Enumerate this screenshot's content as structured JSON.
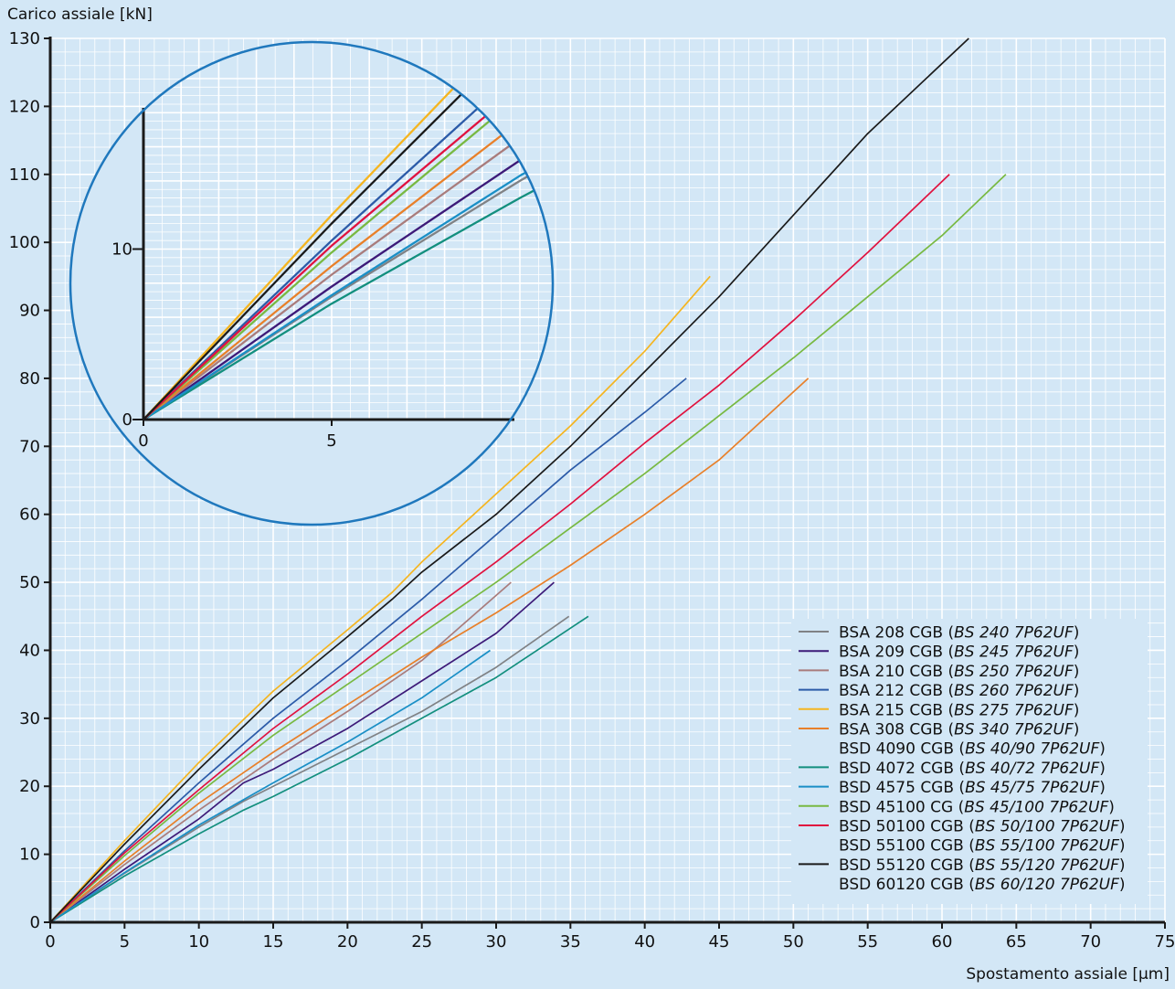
{
  "chart_data": {
    "type": "line",
    "xlabel": "Spostamento assiale [µm]",
    "ylabel": "Carico assiale [kN]",
    "xlim": [
      0,
      75
    ],
    "ylim": [
      0,
      130
    ],
    "xticks": [
      0,
      5,
      10,
      15,
      20,
      25,
      30,
      35,
      40,
      45,
      50,
      55,
      60,
      65,
      70,
      75
    ],
    "yticks": [
      0,
      10,
      20,
      30,
      40,
      50,
      60,
      70,
      80,
      90,
      100,
      110,
      120,
      130
    ],
    "grid": true,
    "legend_position": "bottom-right",
    "series": [
      {
        "name": "BSA 208 CGB",
        "name_note": "BS 240 7P62UF",
        "color": "#808285",
        "points": [
          [
            0,
            0
          ],
          [
            5,
            7.2
          ],
          [
            10,
            14
          ],
          [
            13,
            17.8
          ],
          [
            15,
            20
          ],
          [
            20,
            25.5
          ],
          [
            25,
            31
          ],
          [
            30,
            37.5
          ],
          [
            34.9,
            45
          ]
        ]
      },
      {
        "name": "BSA 209 CGB",
        "name_note": "BS 245 7P62UF",
        "color": "#3d1a78",
        "points": [
          [
            0,
            0
          ],
          [
            5,
            7.8
          ],
          [
            10,
            15.2
          ],
          [
            13,
            20.5
          ],
          [
            15,
            22.5
          ],
          [
            20,
            28.5
          ],
          [
            25,
            35.5
          ],
          [
            30,
            42.5
          ],
          [
            33.9,
            50
          ]
        ]
      },
      {
        "name": "BSA 210 CGB",
        "name_note": "BS 250 7P62UF",
        "color": "#a97c7c",
        "points": [
          [
            0,
            0
          ],
          [
            5,
            8.5
          ],
          [
            10,
            16.5
          ],
          [
            15,
            24
          ],
          [
            20,
            31
          ],
          [
            25,
            38.5
          ],
          [
            31,
            50
          ]
        ]
      },
      {
        "name": "BSA 212 CGB",
        "name_note": "BS 260 7P62UF",
        "color": "#2c5ba8",
        "points": [
          [
            0,
            0
          ],
          [
            5,
            10.5
          ],
          [
            10,
            20.5
          ],
          [
            15,
            30
          ],
          [
            20,
            38.5
          ],
          [
            25,
            47.5
          ],
          [
            30,
            57
          ],
          [
            35,
            66.5
          ],
          [
            40,
            75
          ],
          [
            42.8,
            80
          ]
        ]
      },
      {
        "name": "BSA 215 CGB",
        "name_note": "BS 275 7P62UF",
        "color": "#f5b520",
        "points": [
          [
            0,
            0
          ],
          [
            5,
            12
          ],
          [
            10,
            23.5
          ],
          [
            15,
            34
          ],
          [
            20,
            43
          ],
          [
            23,
            48.5
          ],
          [
            25,
            53
          ],
          [
            30,
            63
          ],
          [
            35,
            73
          ],
          [
            40,
            84
          ],
          [
            44.4,
            95
          ]
        ]
      },
      {
        "name": "BSA 308 CGB",
        "name_note": "BS 340 7P62UF",
        "color": "#e8802a",
        "points": [
          [
            0,
            0
          ],
          [
            5,
            9
          ],
          [
            10,
            17.5
          ],
          [
            15,
            25
          ],
          [
            20,
            32
          ],
          [
            25,
            39
          ],
          [
            30,
            45.5
          ],
          [
            35,
            52.5
          ],
          [
            40,
            60
          ],
          [
            45,
            68
          ],
          [
            51,
            80
          ]
        ]
      },
      {
        "name": "BSD 4090 CGB",
        "name_note": "BS 40/90 7P62UF",
        "color": "",
        "points": []
      },
      {
        "name": "BSD 4072 CGB",
        "name_note": "BS 40/72 7P62UF",
        "color": "#138f7e",
        "points": [
          [
            0,
            0
          ],
          [
            5,
            6.8
          ],
          [
            10,
            13
          ],
          [
            13,
            16.5
          ],
          [
            15,
            18.5
          ],
          [
            20,
            24
          ],
          [
            25,
            30
          ],
          [
            30,
            36
          ],
          [
            36.2,
            45
          ]
        ]
      },
      {
        "name": "BSD 4575 CGB",
        "name_note": "BS 45/75 7P62UF",
        "color": "#1a8fc6",
        "points": [
          [
            0,
            0
          ],
          [
            5,
            7.3
          ],
          [
            10,
            14.3
          ],
          [
            15,
            20.5
          ],
          [
            20,
            26.5
          ],
          [
            25,
            33
          ],
          [
            29.6,
            40
          ]
        ]
      },
      {
        "name": "BSD 45100 CG",
        "name_note": "BS 45/100 7P62UF",
        "color": "#78b942",
        "points": [
          [
            0,
            0
          ],
          [
            5,
            9.8
          ],
          [
            10,
            19
          ],
          [
            15,
            27.5
          ],
          [
            20,
            35
          ],
          [
            25,
            42.5
          ],
          [
            30,
            50
          ],
          [
            35,
            58
          ],
          [
            40,
            66
          ],
          [
            45,
            74.5
          ],
          [
            50,
            83
          ],
          [
            55,
            92
          ],
          [
            60,
            101
          ],
          [
            64.3,
            110
          ]
        ]
      },
      {
        "name": "BSD 50100 CGB",
        "name_note": "BS 50/100 7P62UF",
        "color": "#e0123f",
        "points": [
          [
            0,
            0
          ],
          [
            5,
            10.2
          ],
          [
            10,
            19.5
          ],
          [
            15,
            28.5
          ],
          [
            20,
            36.5
          ],
          [
            25,
            45
          ],
          [
            30,
            53
          ],
          [
            35,
            61.5
          ],
          [
            40,
            70.5
          ],
          [
            45,
            79
          ],
          [
            50,
            88.5
          ],
          [
            55,
            98.5
          ],
          [
            60.5,
            110
          ]
        ]
      },
      {
        "name": "BSD 55100 CGB",
        "name_note": "BS 55/100 7P62UF",
        "color": "",
        "points": []
      },
      {
        "name": "BSD 55120 CGB",
        "name_note": "BS 55/120 7P62UF",
        "color": "#1a1a1a",
        "points": [
          [
            0,
            0
          ],
          [
            5,
            11.5
          ],
          [
            10,
            22.5
          ],
          [
            15,
            33
          ],
          [
            20,
            42
          ],
          [
            23,
            47.5
          ],
          [
            25,
            51.5
          ],
          [
            30,
            60
          ],
          [
            35,
            70
          ],
          [
            40,
            81
          ],
          [
            45,
            92
          ],
          [
            50,
            104
          ],
          [
            55,
            116
          ],
          [
            61.8,
            130
          ]
        ]
      },
      {
        "name": "BSD 60120 CGB",
        "name_note": "BS 60/120 7P62UF",
        "color": "",
        "points": []
      }
    ],
    "inset": {
      "xticks": [
        0,
        5
      ],
      "yticks": [
        0,
        10
      ],
      "xlim": [
        0,
        10
      ],
      "ylim": [
        0,
        18
      ]
    }
  }
}
